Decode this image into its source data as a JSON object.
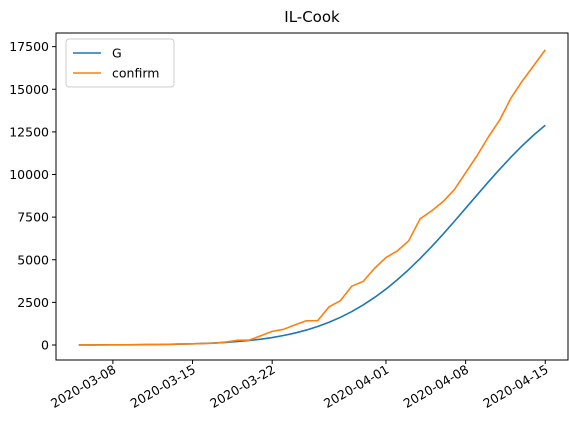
{
  "chart_data": {
    "type": "line",
    "title": "IL-Cook",
    "xlabel": "",
    "ylabel": "",
    "x_tick_labels": [
      "2020-03-08",
      "2020-03-15",
      "2020-03-22",
      "2020-04-01",
      "2020-04-08",
      "2020-04-15"
    ],
    "x_tick_dates": [
      "2020-03-08",
      "2020-03-15",
      "2020-03-22",
      "2020-04-01",
      "2020-04-08",
      "2020-04-15"
    ],
    "x_range": [
      "2020-03-03",
      "2020-04-17"
    ],
    "y_tick_labels": [
      "0",
      "2500",
      "5000",
      "7500",
      "10000",
      "12500",
      "15000",
      "17500"
    ],
    "y_ticks": [
      0,
      2500,
      5000,
      7500,
      10000,
      12500,
      15000,
      17500
    ],
    "ylim": [
      -880,
      18300
    ],
    "grid": false,
    "legend_position": "top-left",
    "x": [
      "2020-03-05",
      "2020-03-06",
      "2020-03-07",
      "2020-03-08",
      "2020-03-09",
      "2020-03-10",
      "2020-03-11",
      "2020-03-12",
      "2020-03-13",
      "2020-03-14",
      "2020-03-15",
      "2020-03-16",
      "2020-03-17",
      "2020-03-18",
      "2020-03-19",
      "2020-03-20",
      "2020-03-21",
      "2020-03-22",
      "2020-03-23",
      "2020-03-24",
      "2020-03-25",
      "2020-03-26",
      "2020-03-27",
      "2020-03-28",
      "2020-03-29",
      "2020-03-30",
      "2020-03-31",
      "2020-04-01",
      "2020-04-02",
      "2020-04-03",
      "2020-04-04",
      "2020-04-05",
      "2020-04-06",
      "2020-04-07",
      "2020-04-08",
      "2020-04-09",
      "2020-04-10",
      "2020-04-11",
      "2020-04-12",
      "2020-04-13",
      "2020-04-14",
      "2020-04-15"
    ],
    "series": [
      {
        "name": "G",
        "color": "#1f77b4",
        "values": [
          5,
          6,
          8,
          10,
          13,
          17,
          23,
          30,
          40,
          53,
          70,
          92,
          121,
          158,
          206,
          267,
          343,
          438,
          556,
          700,
          875,
          1085,
          1333,
          1624,
          1962,
          2349,
          2788,
          3280,
          3825,
          4422,
          5069,
          5758,
          6486,
          7243,
          8016,
          8794,
          9564,
          10312,
          11028,
          11702,
          12325,
          12890
        ]
      },
      {
        "name": "confirm",
        "color": "#ff7f0e",
        "values": [
          2,
          5,
          6,
          8,
          10,
          13,
          20,
          30,
          40,
          60,
          70,
          93,
          105,
          180,
          280,
          290,
          540,
          800,
          920,
          1180,
          1420,
          1430,
          2240,
          2600,
          3450,
          3730,
          4500,
          5130,
          5520,
          6111,
          7400,
          7860,
          8400,
          9100,
          10100,
          11100,
          12200,
          13200,
          14500,
          15500,
          16400,
          17310
        ]
      }
    ]
  }
}
